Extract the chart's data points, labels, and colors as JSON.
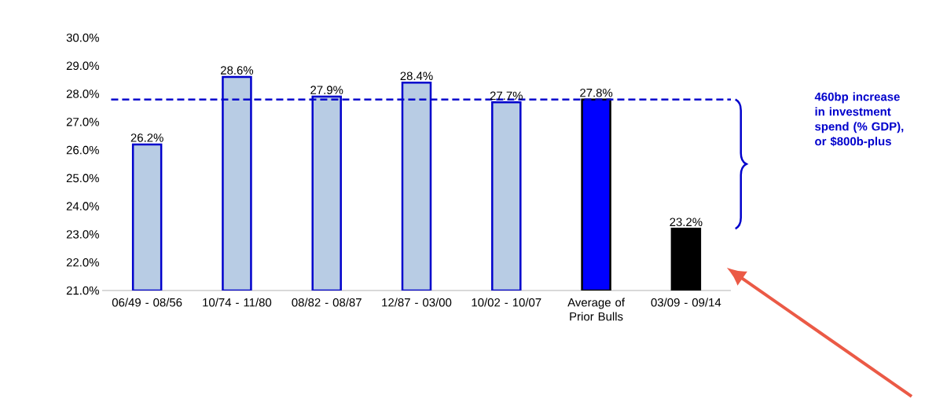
{
  "chart_data": {
    "type": "bar",
    "categories": [
      "06/49 - 08/56",
      "10/74 - 11/80",
      "08/82 - 08/87",
      "12/87 - 03/00",
      "10/02 - 10/07",
      "Average of Prior Bulls",
      "03/09 - 09/14"
    ],
    "values": [
      26.2,
      28.6,
      27.9,
      28.4,
      27.7,
      27.8,
      23.2
    ],
    "colors": [
      "#b8cce4",
      "#b8cce4",
      "#b8cce4",
      "#b8cce4",
      "#b8cce4",
      "#0000ff",
      "#000000"
    ],
    "value_labels": [
      "26.2%",
      "28.6%",
      "27.9%",
      "28.4%",
      "27.7%",
      "27.8%",
      "23.2%"
    ],
    "ylim": [
      21,
      30
    ],
    "yticks": [
      {
        "value": 21,
        "label": "21.0%"
      },
      {
        "value": 22,
        "label": "22.0%"
      },
      {
        "value": 23,
        "label": "23.0%"
      },
      {
        "value": 24,
        "label": "24.0%"
      },
      {
        "value": 25,
        "label": "25.0%"
      },
      {
        "value": 26,
        "label": "26.0%"
      },
      {
        "value": 27,
        "label": "27.0%"
      },
      {
        "value": 28,
        "label": "28.0%"
      },
      {
        "value": 29,
        "label": "29.0%"
      },
      {
        "value": 30,
        "label": "30.0%"
      }
    ],
    "ref_lines": [
      {
        "axis": "y",
        "value": 27.8,
        "color": "#0000cc",
        "line_style": "dashed"
      }
    ],
    "annotations": [
      "460bp increase in investment spend (% GDP), or $800b-plus"
    ],
    "grid": false
  }
}
